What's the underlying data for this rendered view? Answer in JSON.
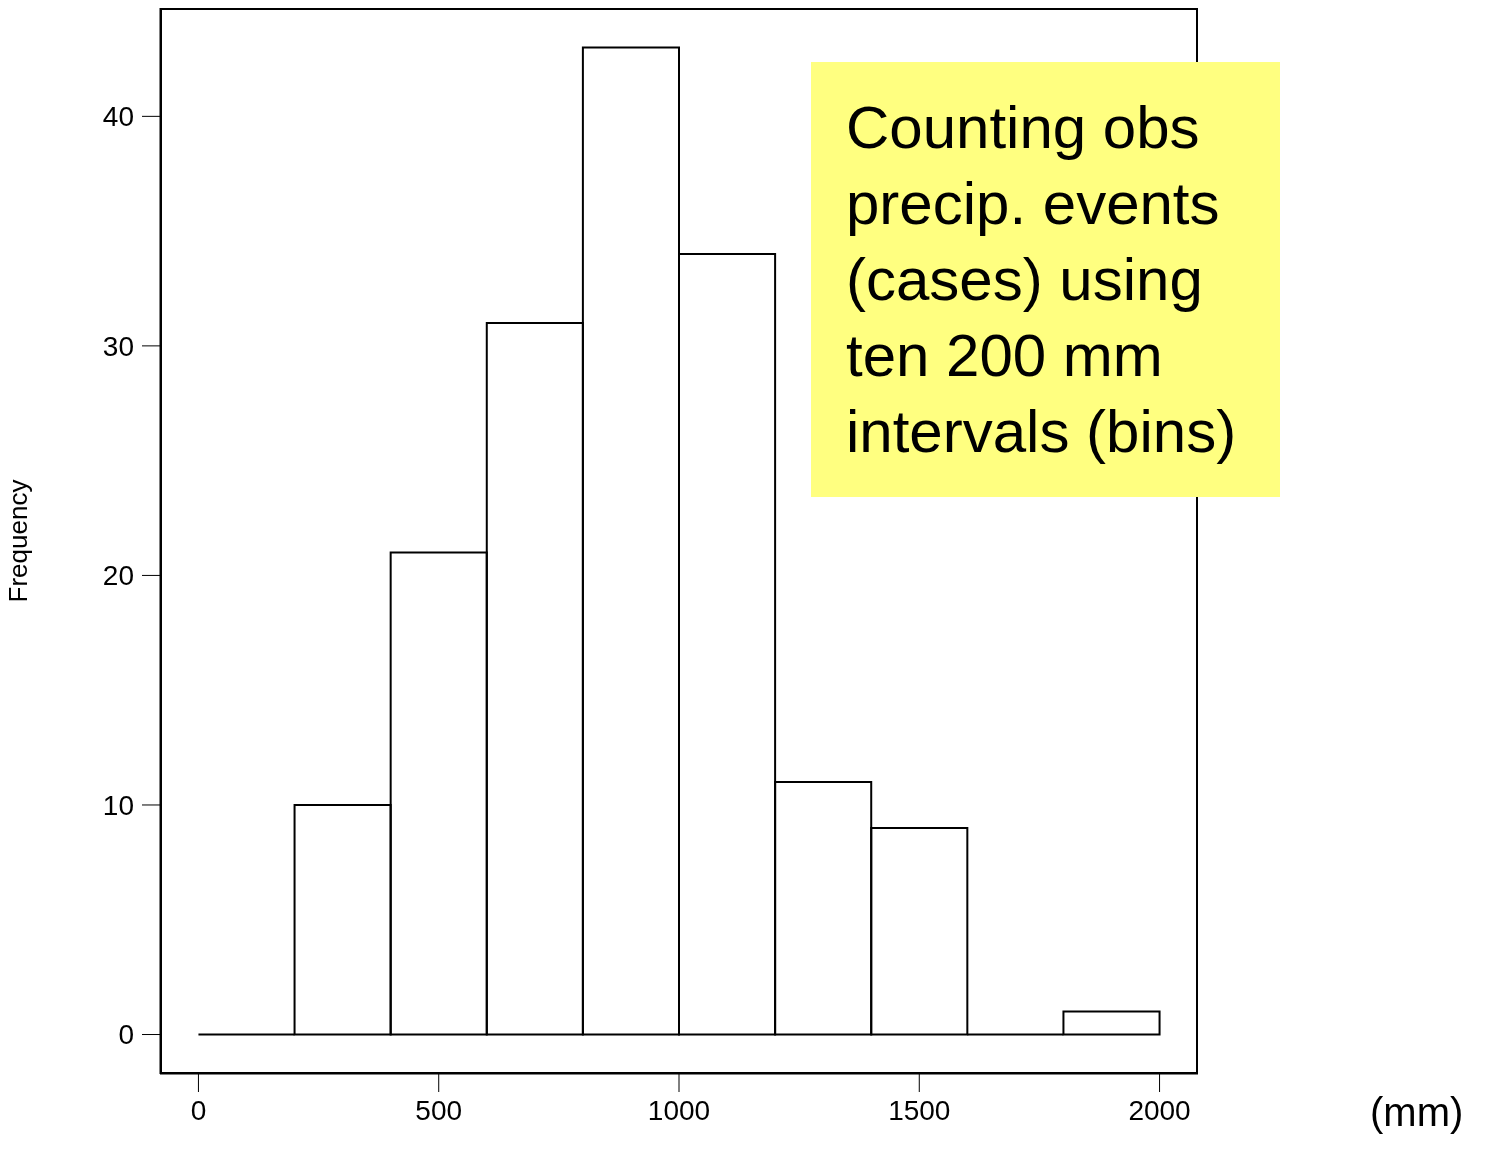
{
  "chart_data": {
    "type": "histogram",
    "bins": [
      0,
      200,
      400,
      600,
      800,
      1000,
      1200,
      1400,
      1600,
      1800,
      2000
    ],
    "values": [
      0,
      10,
      21,
      31,
      43,
      34,
      11,
      9,
      0,
      1
    ],
    "xlabel": "(mm)",
    "ylabel": "Frequency",
    "xlim": [
      -80,
      2080
    ],
    "ylim": [
      -1.72,
      44.72
    ],
    "xticks": [
      0,
      500,
      1000,
      1500,
      2000
    ],
    "yticks": [
      0,
      10,
      20,
      30,
      40
    ],
    "annotations": [
      "Counting obs\nprecip. events\n(cases) using\nten 200 mm\nintervals (bins)"
    ]
  }
}
